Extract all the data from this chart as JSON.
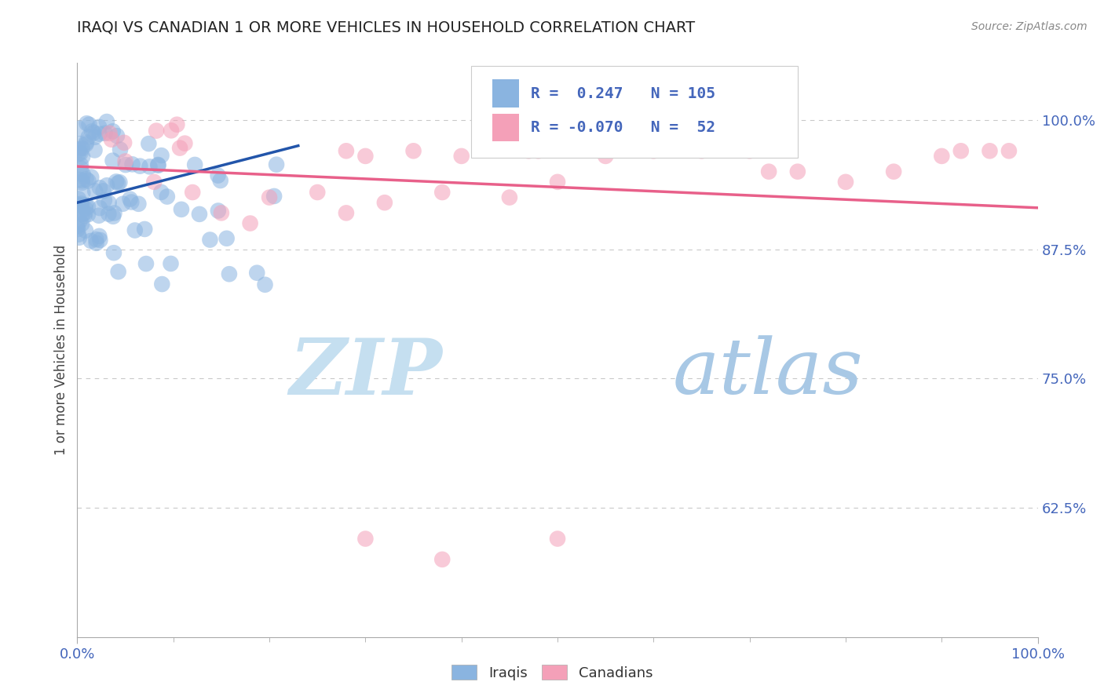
{
  "title": "IRAQI VS CANADIAN 1 OR MORE VEHICLES IN HOUSEHOLD CORRELATION CHART",
  "source_text": "Source: ZipAtlas.com",
  "ylabel": "1 or more Vehicles in Household",
  "ytick_labels": [
    "100.0%",
    "87.5%",
    "75.0%",
    "62.5%"
  ],
  "ytick_values": [
    1.0,
    0.875,
    0.75,
    0.625
  ],
  "ylim": [
    0.5,
    1.055
  ],
  "xlim": [
    0.0,
    1.0
  ],
  "legend_labels": [
    "Iraqis",
    "Canadians"
  ],
  "iraqi_R": 0.247,
  "iraqi_N": 105,
  "canadian_R": -0.07,
  "canadian_N": 52,
  "iraqi_color": "#8ab4e0",
  "canadian_color": "#f4a0b8",
  "iraqi_line_color": "#2255aa",
  "canadian_line_color": "#e8608a",
  "watermark_zip_color": "#c8dff0",
  "watermark_atlas_color": "#a0c8e8",
  "background_color": "#ffffff",
  "grid_color": "#bbbbbb",
  "title_color": "#222222",
  "axis_label_color": "#444444",
  "tick_label_color": "#4466bb",
  "source_color": "#888888"
}
